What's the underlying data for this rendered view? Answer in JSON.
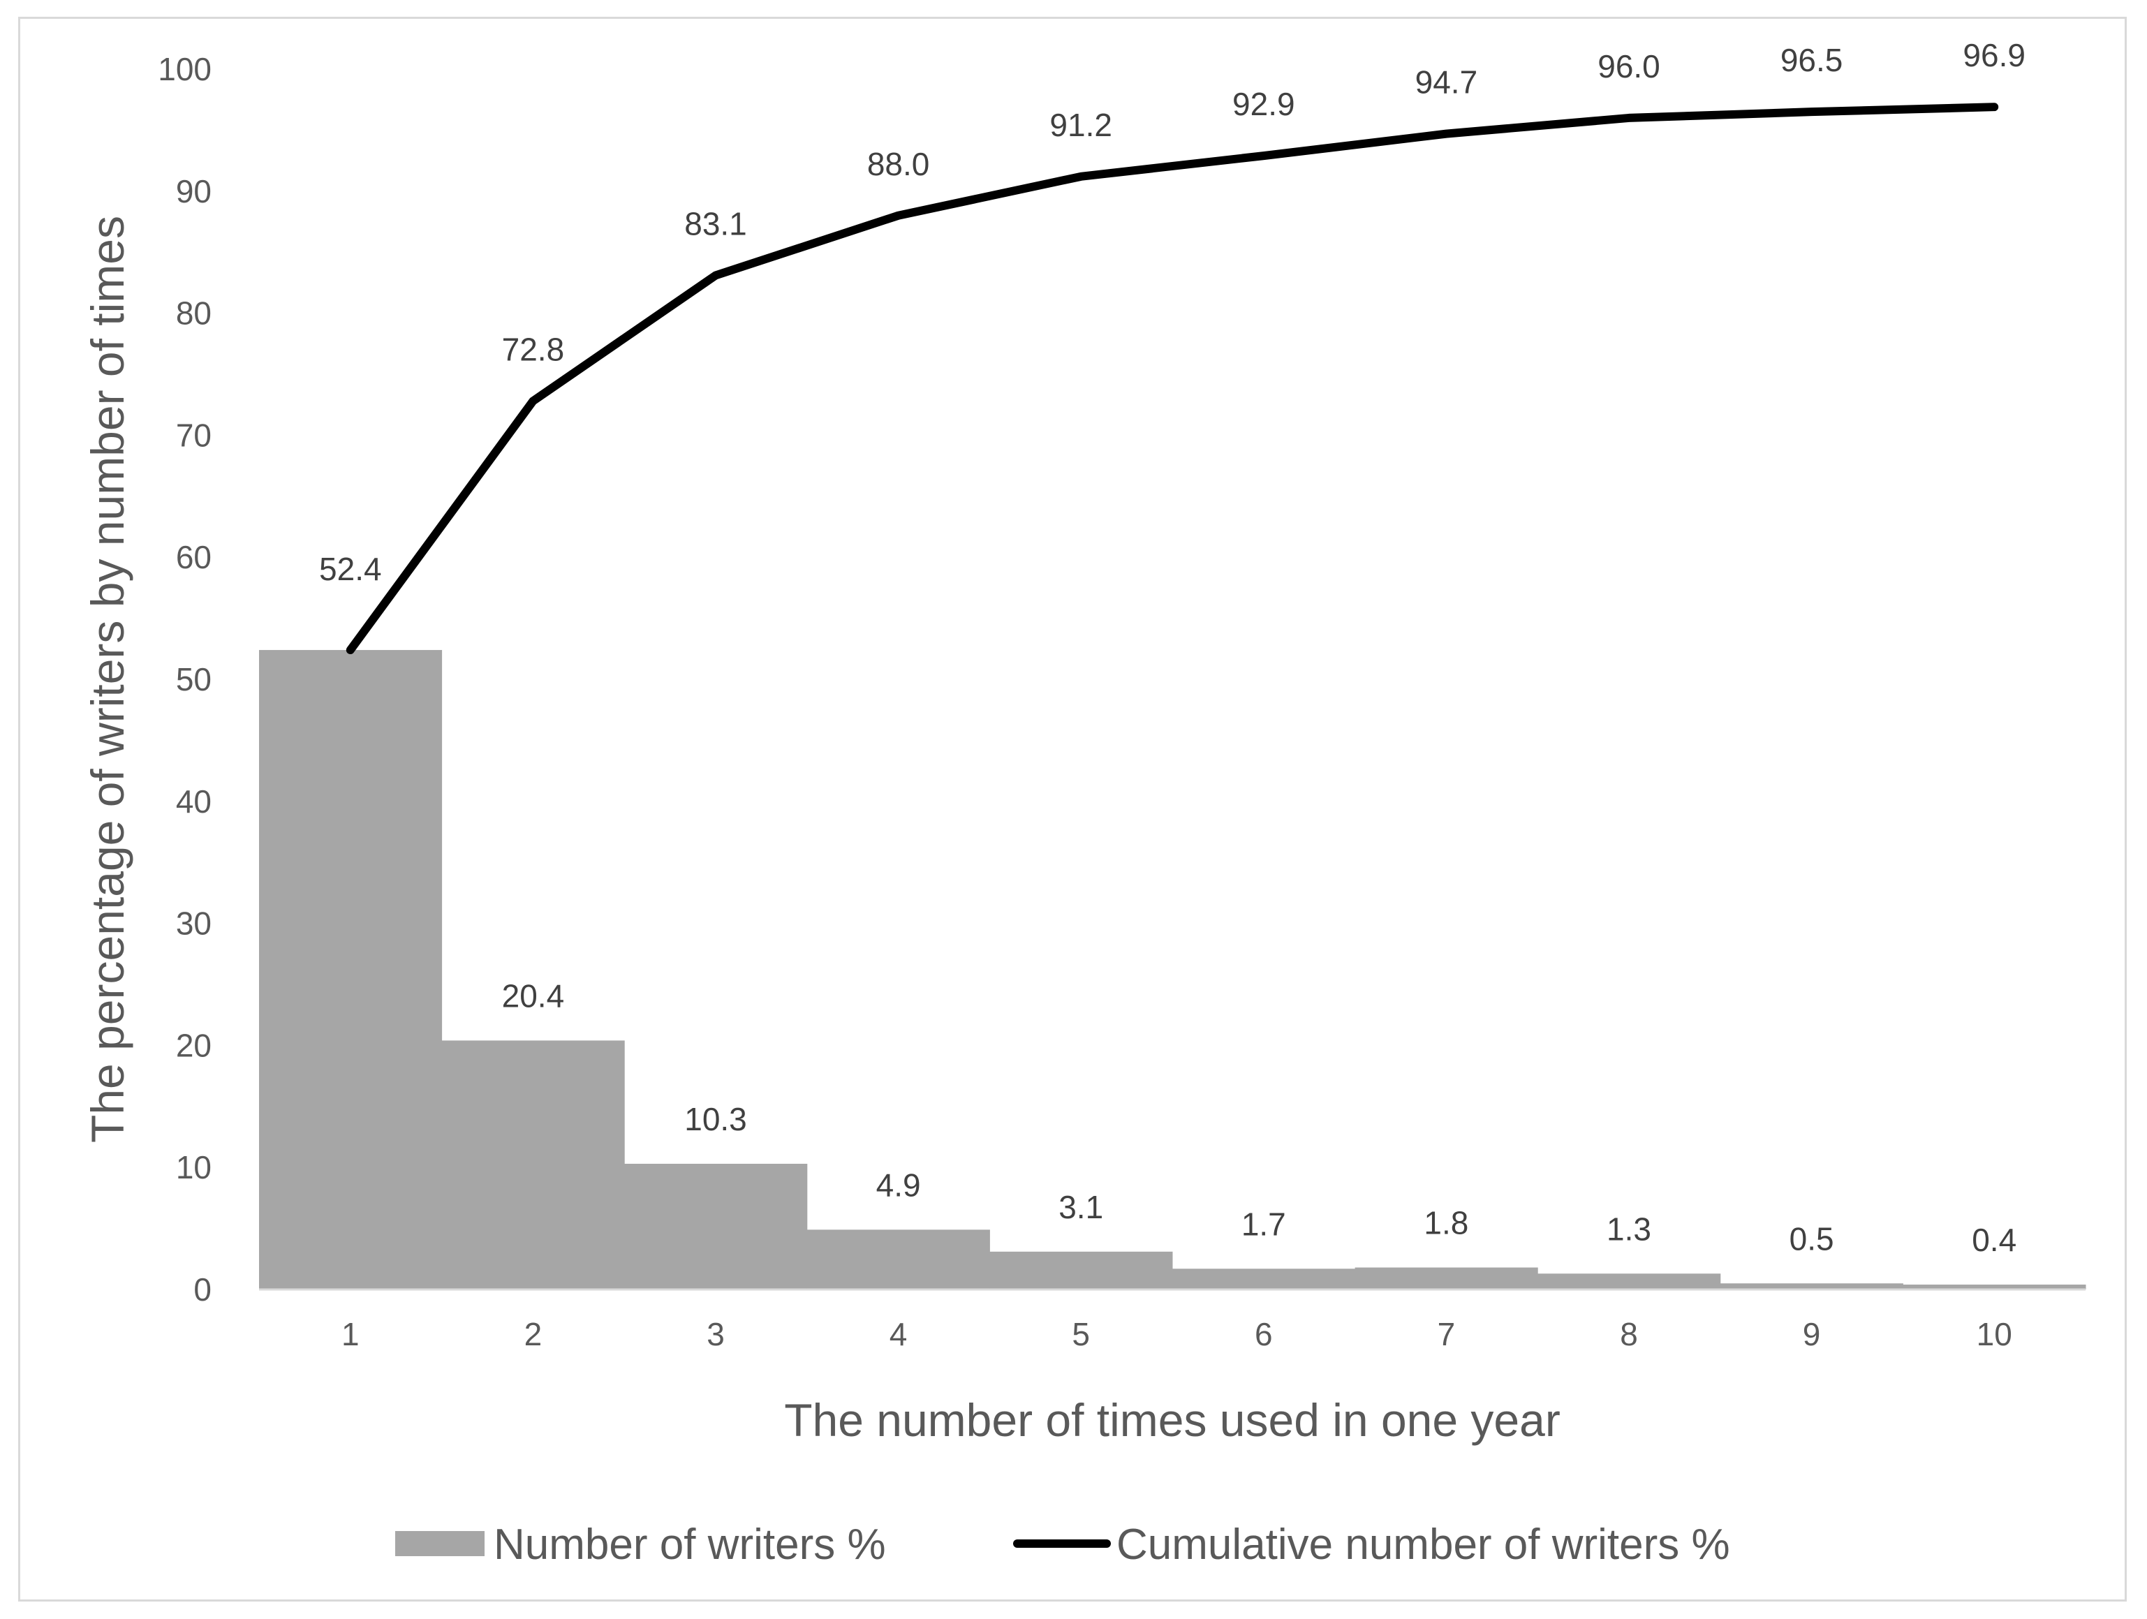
{
  "chart_data": {
    "type": "bar",
    "xlabel": "The number of times used in one year",
    "ylabel": "The percentage of writers by number of times",
    "categories": [
      "1",
      "2",
      "3",
      "4",
      "5",
      "6",
      "7",
      "8",
      "9",
      "10"
    ],
    "ylim": [
      0,
      100
    ],
    "yticks": [
      0,
      10,
      20,
      30,
      40,
      50,
      60,
      70,
      80,
      90,
      100
    ],
    "grid": false,
    "legend_position": "bottom",
    "series": [
      {
        "name": "Number of writers %",
        "type": "bar",
        "color": "#a6a6a6",
        "values": [
          52.4,
          20.4,
          10.3,
          4.9,
          3.1,
          1.7,
          1.8,
          1.3,
          0.5,
          0.4
        ],
        "labels": [
          "52.4",
          "20.4",
          "10.3",
          "4.9",
          "3.1",
          "1.7",
          "1.8",
          "1.3",
          "0.5",
          "0.4"
        ]
      },
      {
        "name": "Cumulative number of writers %",
        "type": "line",
        "color": "#000000",
        "values": [
          52.4,
          72.8,
          83.1,
          88.0,
          91.2,
          92.9,
          94.7,
          96.0,
          96.5,
          96.9
        ],
        "labels": [
          "52.4",
          "72.8",
          "83.1",
          "88.0",
          "91.2",
          "92.9",
          "94.7",
          "96.0",
          "96.5",
          "96.9"
        ]
      }
    ]
  }
}
